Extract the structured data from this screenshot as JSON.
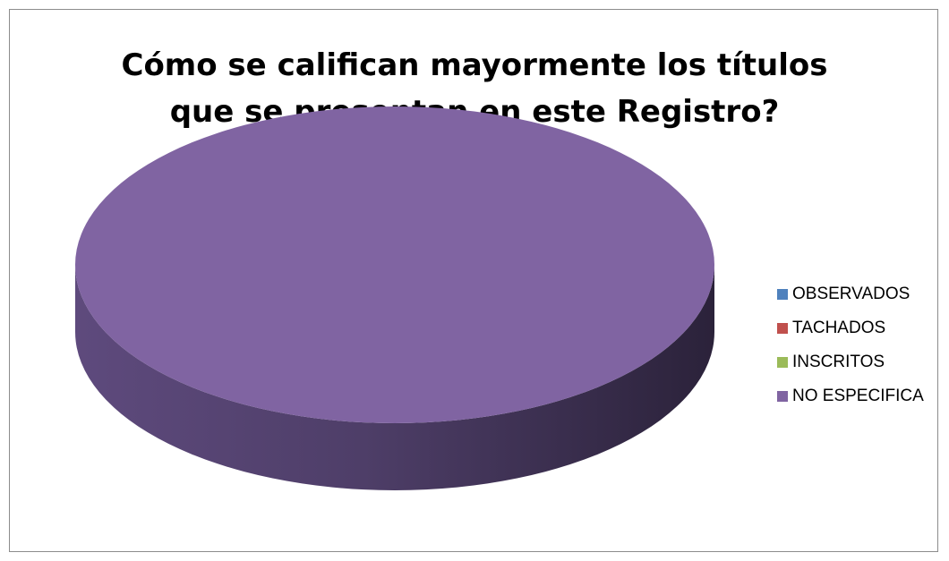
{
  "chart_data": {
    "type": "pie",
    "title_lines": [
      "Cómo se califican mayormente los títulos",
      "que se presentan en este Registro?"
    ],
    "categories": [
      "OBSERVADOS",
      "TACHADOS",
      "INSCRITOS",
      "NO ESPECIFICA"
    ],
    "values": [
      0,
      0,
      0,
      100
    ],
    "colors": [
      "#4f81bd",
      "#c0504d",
      "#9bbb59",
      "#8064a2"
    ],
    "legend_position": "right",
    "style": "3d"
  }
}
